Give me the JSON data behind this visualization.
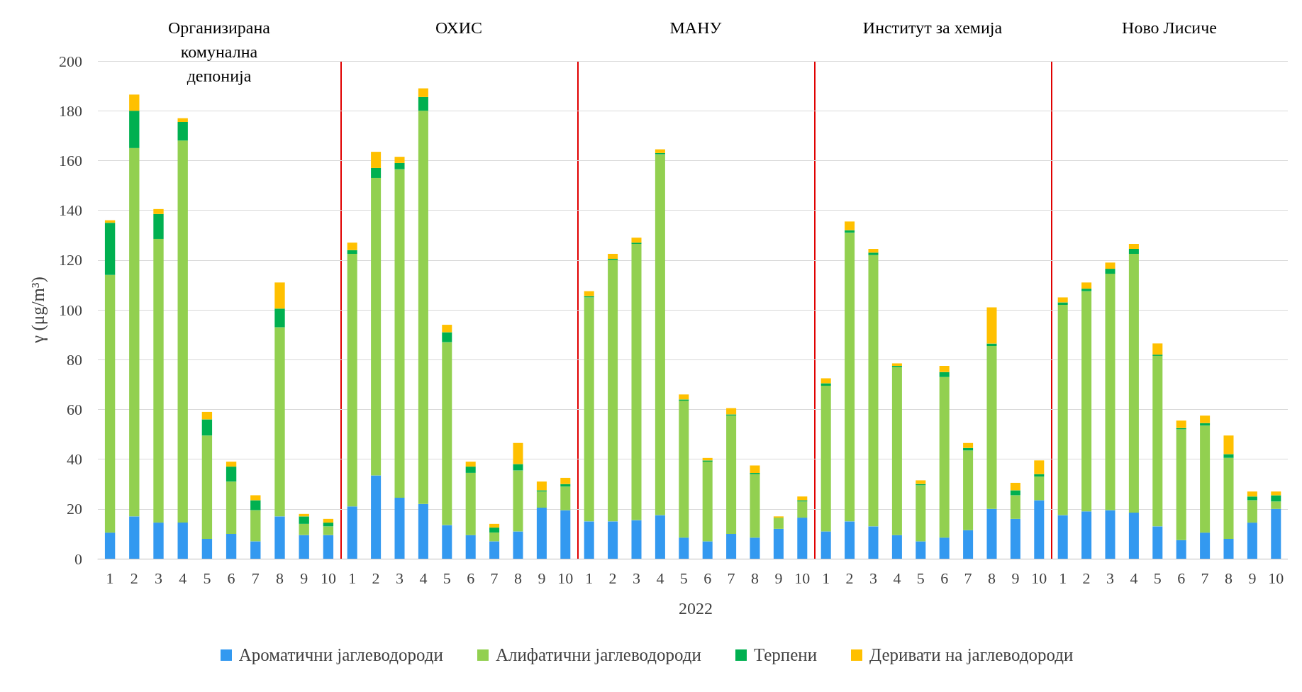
{
  "chart_data": [
    {
      "type": "bar",
      "title": "Организирана комунална депонија",
      "ylabel": "γ (μg/m³)",
      "legend": "bottom",
      "stacked": true,
      "grid": "y",
      "ylim": [
        0,
        200
      ],
      "yticks": [
        0,
        20,
        40,
        60,
        80,
        100,
        120,
        140,
        160,
        180,
        200
      ],
      "categories": [
        "1",
        "2",
        "3",
        "4",
        "5",
        "6",
        "7",
        "8",
        "9",
        "10"
      ],
      "series": [
        {
          "name": "Ароматични јаглеводороди",
          "color": "#3399f0",
          "values": [
            10.5,
            17,
            14.5,
            14.5,
            8,
            10,
            7,
            17,
            9.5,
            9.5
          ]
        },
        {
          "name": "Алифатични јаглеводороди",
          "color": "#92d050",
          "values": [
            103.5,
            148,
            114,
            153.5,
            41.5,
            21,
            12.5,
            76,
            4.5,
            3.5
          ]
        },
        {
          "name": "Терпени",
          "color": "#00b050",
          "values": [
            21,
            15,
            10,
            7.5,
            6.5,
            6,
            4,
            7.5,
            3,
            1.5
          ]
        },
        {
          "name": "Деривати на јаглеводороди",
          "color": "#ffc000",
          "values": [
            1,
            6.5,
            2,
            1.5,
            3,
            2,
            2,
            10.5,
            1,
            1.5
          ]
        }
      ]
    },
    {
      "type": "bar",
      "title": "ОХИС",
      "stacked": true,
      "grid": "y",
      "tick_labels": "x",
      "ylim": [
        0,
        200
      ],
      "yticks": [
        0,
        20,
        40,
        60,
        80,
        100,
        120,
        140,
        160,
        180,
        200
      ],
      "categories": [
        "1",
        "2",
        "3",
        "4",
        "5",
        "6",
        "7",
        "8",
        "9",
        "10"
      ],
      "series": [
        {
          "color": "#3399f0",
          "values": [
            21,
            33.5,
            24.5,
            22,
            13.5,
            9.5,
            7,
            11,
            20.5,
            19.5
          ]
        },
        {
          "color": "#92d050",
          "values": [
            101.5,
            119.5,
            132,
            158,
            73.5,
            25,
            3.5,
            24.5,
            6.5,
            9.5
          ]
        },
        {
          "color": "#00b050",
          "values": [
            1.5,
            4,
            2.5,
            5.5,
            4,
            2.5,
            2,
            2.5,
            0.5,
            1
          ]
        },
        {
          "color": "#ffc000",
          "values": [
            3,
            6.5,
            2.5,
            3.5,
            3,
            2,
            1.5,
            8.5,
            3.5,
            2.5
          ]
        }
      ]
    },
    {
      "type": "bar",
      "title": "МАНУ",
      "xlabel": "2022",
      "stacked": true,
      "grid": "y",
      "tick_labels": "x",
      "ylim": [
        0,
        200
      ],
      "yticks": [
        0,
        20,
        40,
        60,
        80,
        100,
        120,
        140,
        160,
        180,
        200
      ],
      "categories": [
        "1",
        "2",
        "3",
        "4",
        "5",
        "6",
        "7",
        "8",
        "9",
        "10"
      ],
      "series": [
        {
          "color": "#3399f0",
          "values": [
            15,
            15,
            15.5,
            17.5,
            8.5,
            7,
            10,
            8.5,
            12,
            16.5
          ]
        },
        {
          "color": "#92d050",
          "values": [
            90,
            105,
            111,
            145,
            55,
            32,
            47.5,
            25.5,
            4.5,
            6.5
          ]
        },
        {
          "color": "#00b050",
          "values": [
            0.5,
            0.5,
            0.5,
            0.5,
            0.5,
            0.5,
            0.5,
            0.5,
            0,
            0.5
          ]
        },
        {
          "color": "#ffc000",
          "values": [
            2,
            2,
            2,
            1.5,
            2,
            1,
            2.5,
            3,
            0.5,
            1.5
          ]
        }
      ]
    },
    {
      "type": "bar",
      "title": "Институт за хемија",
      "stacked": true,
      "grid": "y",
      "tick_labels": "x",
      "ylim": [
        0,
        200
      ],
      "yticks": [
        0,
        20,
        40,
        60,
        80,
        100,
        120,
        140,
        160,
        180,
        200
      ],
      "categories": [
        "1",
        "2",
        "3",
        "4",
        "5",
        "6",
        "7",
        "8",
        "9",
        "10"
      ],
      "series": [
        {
          "color": "#3399f0",
          "values": [
            11,
            15,
            13,
            9.5,
            7,
            8.5,
            11.5,
            20,
            16,
            23.5
          ]
        },
        {
          "color": "#92d050",
          "values": [
            58.5,
            116,
            109,
            67.5,
            22.5,
            64.5,
            32,
            65.5,
            9.5,
            9.5
          ]
        },
        {
          "color": "#00b050",
          "values": [
            1,
            1,
            1,
            0.5,
            0.5,
            2,
            1,
            1,
            2,
            1
          ]
        },
        {
          "color": "#ffc000",
          "values": [
            2,
            3.5,
            1.5,
            1,
            1.5,
            2.5,
            2,
            14.5,
            3,
            5.5
          ]
        }
      ]
    },
    {
      "type": "bar",
      "title": "Ново Лисиче",
      "stacked": true,
      "grid": "y",
      "tick_labels": "x",
      "ylim": [
        0,
        200
      ],
      "yticks": [
        0,
        20,
        40,
        60,
        80,
        100,
        120,
        140,
        160,
        180,
        200
      ],
      "categories": [
        "1",
        "2",
        "3",
        "4",
        "5",
        "6",
        "7",
        "8",
        "9",
        "10"
      ],
      "series": [
        {
          "color": "#3399f0",
          "values": [
            17.5,
            19,
            19.5,
            18.5,
            13,
            7.5,
            10.5,
            8,
            14.5,
            20
          ]
        },
        {
          "color": "#92d050",
          "values": [
            84.5,
            88.5,
            95,
            104,
            68.5,
            44.5,
            43,
            32.5,
            9,
            3
          ]
        },
        {
          "color": "#00b050",
          "values": [
            1,
            1,
            2,
            2,
            0.5,
            0.5,
            1,
            1.5,
            1.5,
            2.5
          ]
        },
        {
          "color": "#ffc000",
          "values": [
            2,
            2.5,
            2.5,
            2,
            4.5,
            3,
            3,
            7.5,
            2,
            1.5
          ]
        }
      ]
    }
  ]
}
